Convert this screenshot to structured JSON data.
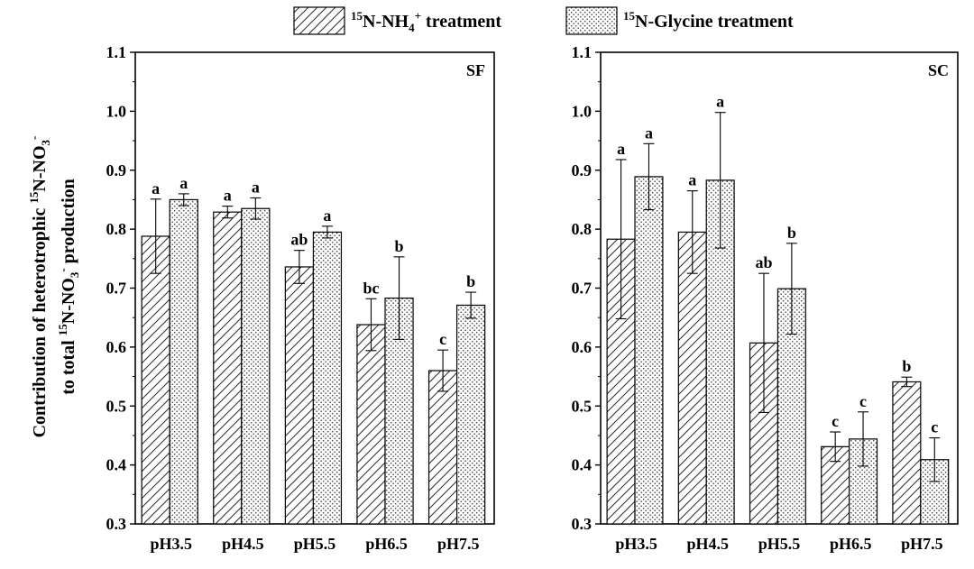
{
  "chart_data": {
    "type": "bar",
    "ylabel_line1": "Contribution of heterotrophic ¹⁵N-NO₃⁻",
    "ylabel_line2": "to total ¹⁵N-NO₃⁻ production",
    "ylim": [
      0.3,
      1.1
    ],
    "yticks": [
      "0.3",
      "0.4",
      "0.5",
      "0.6",
      "0.7",
      "0.8",
      "0.9",
      "1.0",
      "1.1"
    ],
    "legend": {
      "placement": "top-center",
      "items": [
        {
          "pattern": "hatch",
          "label": "15N-NH4+ treatment"
        },
        {
          "pattern": "dots",
          "label": "15N-Glycine treatment"
        }
      ]
    },
    "panels": [
      {
        "label": "SF",
        "categories": [
          "pH3.5",
          "pH4.5",
          "pH5.5",
          "pH6.5",
          "pH7.5"
        ],
        "series": [
          {
            "pattern": "hatch",
            "values": [
              0.788,
              0.829,
              0.736,
              0.638,
              0.56
            ],
            "errors": [
              0.063,
              0.01,
              0.028,
              0.044,
              0.035
            ],
            "letters": [
              "a",
              "a",
              "ab",
              "bc",
              "c"
            ]
          },
          {
            "pattern": "dots",
            "values": [
              0.85,
              0.835,
              0.795,
              0.683,
              0.671
            ],
            "errors": [
              0.01,
              0.018,
              0.01,
              0.07,
              0.022
            ],
            "letters": [
              "a",
              "a",
              "a",
              "b",
              "b"
            ]
          }
        ]
      },
      {
        "label": "SC",
        "categories": [
          "pH3.5",
          "pH4.5",
          "pH5.5",
          "pH6.5",
          "pH7.5"
        ],
        "series": [
          {
            "pattern": "hatch",
            "values": [
              0.783,
              0.795,
              0.607,
              0.431,
              0.541
            ],
            "errors": [
              0.135,
              0.07,
              0.118,
              0.025,
              0.008
            ],
            "letters": [
              "a",
              "a",
              "ab",
              "c",
              "b"
            ]
          },
          {
            "pattern": "dots",
            "values": [
              0.889,
              0.883,
              0.699,
              0.444,
              0.409
            ],
            "errors": [
              0.056,
              0.115,
              0.077,
              0.046,
              0.037
            ],
            "letters": [
              "a",
              "a",
              "b",
              "c",
              "c"
            ]
          }
        ]
      }
    ]
  }
}
